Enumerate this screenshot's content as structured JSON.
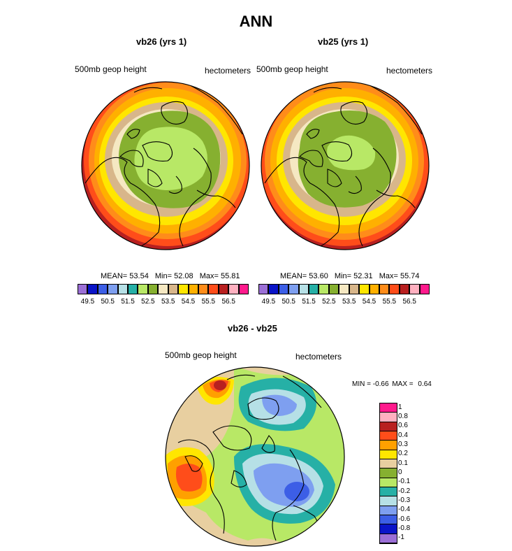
{
  "page": {
    "title": "ANN"
  },
  "panels": [
    {
      "title": "vb26 (yrs 1)",
      "left_label": "500mb geop height",
      "right_label": "hectometers",
      "stats": {
        "mean_label": "MEAN=",
        "mean": "53.54",
        "min_label": "Min=",
        "min": "52.08",
        "max_label": "Max=",
        "max": "55.81"
      }
    },
    {
      "title": "vb25 (yrs 1)",
      "left_label": "500mb geop height",
      "right_label": "hectometers",
      "stats": {
        "mean_label": "MEAN=",
        "mean": "53.60",
        "min_label": "Min=",
        "min": "52.31",
        "max_label": "Max=",
        "max": "55.74"
      }
    }
  ],
  "colorbar": {
    "ticks": [
      "49.5",
      "50.5",
      "51.5",
      "52.5",
      "53.5",
      "54.5",
      "55.5",
      "56.5"
    ],
    "colors": [
      "#9b6fd6",
      "#0a14c8",
      "#3c5ee6",
      "#7e9ff0",
      "#b6e0e6",
      "#26b0a6",
      "#b8e866",
      "#86b030",
      "#f5e8c2",
      "#d8b68a",
      "#ffe600",
      "#ffb000",
      "#ff8c1a",
      "#ff4d1a",
      "#b82020",
      "#ffb0c0",
      "#ff1a8c"
    ]
  },
  "diff": {
    "title": "vb26 - vb25",
    "left_label": "500mb geop height",
    "right_label": "hectometers",
    "min_label": "MIN =",
    "min": "-0.66",
    "max_label": "MAX =",
    "max": "0.64",
    "levels": [
      "1",
      "0.8",
      "0.6",
      "0.4",
      "0.3",
      "0.2",
      "0.1",
      "0",
      "-0.1",
      "-0.2",
      "-0.3",
      "-0.4",
      "-0.6",
      "-0.8",
      "-1"
    ],
    "colors": [
      "#ff1a8c",
      "#ffb0c0",
      "#b82020",
      "#ff4d1a",
      "#ffa000",
      "#ffe600",
      "#e8cfa0",
      "#86b030",
      "#b8e866",
      "#26b0a6",
      "#b6e0e6",
      "#7e9ff0",
      "#3c5ee6",
      "#0a14c8",
      "#9b6fd6"
    ]
  }
}
